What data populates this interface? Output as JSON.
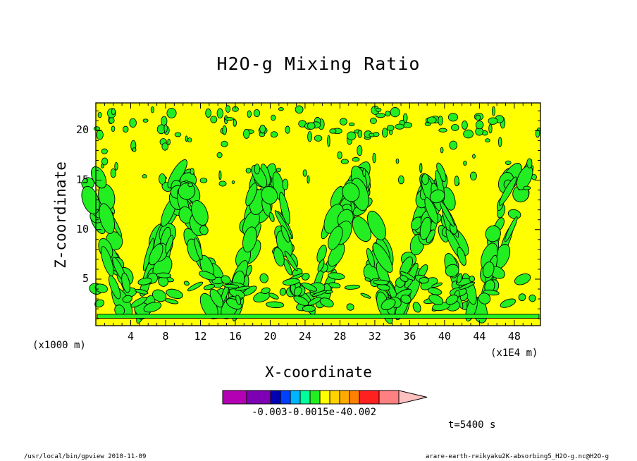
{
  "chart_data": {
    "type": "heatmap",
    "title": "H2O-g Mixing Ratio",
    "xlabel": "X-coordinate",
    "ylabel": "Z-coordinate",
    "x_unit": "(x1E4 m)",
    "x_unit_left": "(x1000 m)",
    "x_ticks": [
      4,
      8,
      12,
      16,
      20,
      24,
      28,
      32,
      36,
      40,
      44,
      48
    ],
    "y_ticks": [
      5,
      10,
      15,
      20
    ],
    "xlim": [
      0,
      51
    ],
    "ylim": [
      0.3,
      22.8
    ],
    "dominant_level_color": "#ffff00",
    "secondary_level_color": "#22ee22",
    "colorbar": {
      "colors": [
        "#b400b4",
        "#7d00b4",
        "#0000b4",
        "#0040ff",
        "#00b4ff",
        "#00ff9a",
        "#22ee22",
        "#ffff00",
        "#ffd200",
        "#ffaa00",
        "#ff8000",
        "#ff2020",
        "#ff8080",
        "#ffc0c0"
      ],
      "label_text": "-0.003-0.0015e-40.002"
    },
    "time_label": "t=5400 s"
  },
  "footer": {
    "left": "/usr/local/bin/gpview   2010-11-09",
    "right": "arare-earth-reikyaku2K-absorbing5_H2O-g.nc@H2O-g"
  }
}
